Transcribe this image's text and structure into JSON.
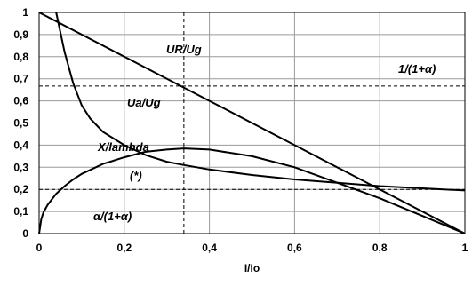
{
  "chart_data": {
    "type": "line",
    "title": "",
    "xlabel": "I/Io",
    "ylabel": "",
    "xlim": [
      0,
      1
    ],
    "ylim": [
      0,
      1
    ],
    "x_ticks": [
      "0",
      "0,2",
      "0,4",
      "0,6",
      "0,8",
      "1"
    ],
    "y_ticks": [
      "0",
      "0,1",
      "0,2",
      "0,3",
      "0,4",
      "0,5",
      "0,6",
      "0,7",
      "0,8",
      "0,9",
      "1"
    ],
    "grid": true,
    "series": [
      {
        "name": "UR/Ug",
        "x": [
          0,
          0.2,
          0.4,
          0.6,
          0.8,
          1.0
        ],
        "y": [
          1.0,
          0.8,
          0.6,
          0.4,
          0.2,
          0.0
        ]
      },
      {
        "name": "Ua/Ug",
        "x": [
          0.04,
          0.06,
          0.08,
          0.1,
          0.12,
          0.15,
          0.2,
          0.25,
          0.3,
          0.34,
          0.4,
          0.5,
          0.6,
          0.7,
          0.8,
          0.9,
          1.0
        ],
        "y": [
          1.0,
          0.82,
          0.68,
          0.58,
          0.52,
          0.46,
          0.4,
          0.355,
          0.325,
          0.31,
          0.29,
          0.265,
          0.245,
          0.23,
          0.215,
          0.205,
          0.195
        ]
      },
      {
        "name": "X/lambda",
        "x": [
          0,
          0.005,
          0.01,
          0.02,
          0.04,
          0.06,
          0.08,
          0.1,
          0.15,
          0.2,
          0.25,
          0.3,
          0.34,
          0.4,
          0.5,
          0.6,
          0.7,
          0.8,
          0.9,
          1.0
        ],
        "y": [
          0,
          0.065,
          0.095,
          0.13,
          0.18,
          0.215,
          0.245,
          0.27,
          0.315,
          0.345,
          0.37,
          0.38,
          0.385,
          0.38,
          0.35,
          0.3,
          0.23,
          0.16,
          0.08,
          0.0
        ]
      }
    ],
    "reference_lines": {
      "horizontal": [
        0.667,
        0.2
      ],
      "vertical": [
        0.34
      ]
    },
    "annotations": [
      "UR/Ug",
      "Ua/Ug",
      "X/lambda",
      "1/(1+α)",
      "(*)",
      "α/(1+α)"
    ]
  }
}
